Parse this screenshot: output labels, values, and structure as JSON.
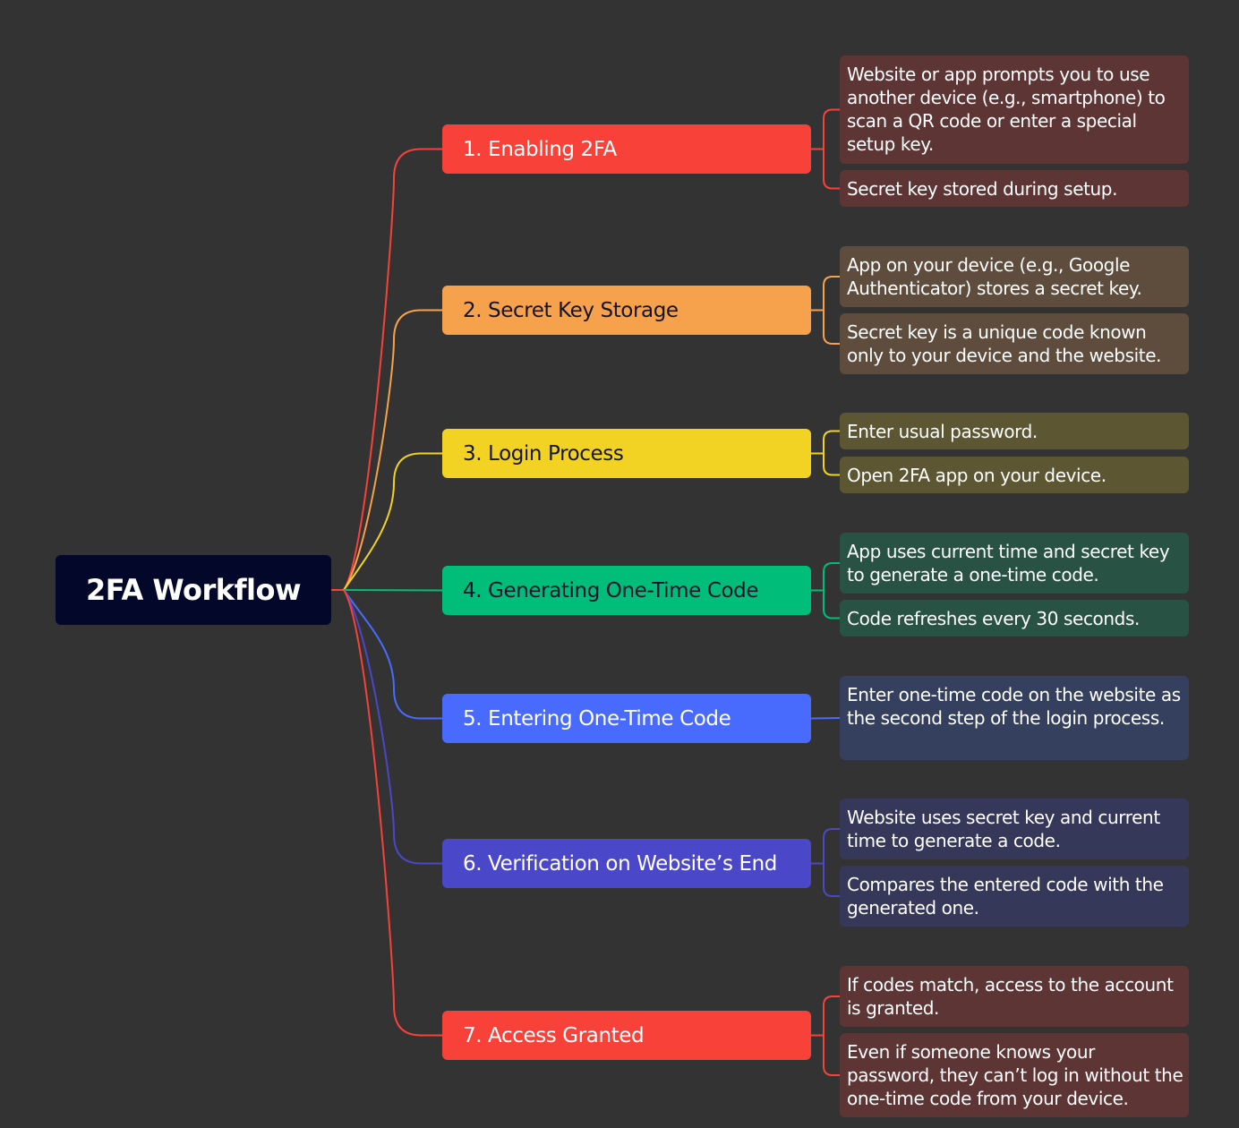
{
  "root": {
    "label": "2FA Workflow",
    "color": "#03082a",
    "text_color": "#ffffff"
  },
  "branches": [
    {
      "label": "1. Enabling 2FA",
      "color": "#f84139",
      "text_color": "#ffffff",
      "line_color": "#f84139",
      "leaf_color": "#5e3535",
      "leaves": [
        "Website or app prompts you to use another device (e.g., smartphone) to scan a QR code or enter a special setup key.",
        "Secret key stored during setup."
      ]
    },
    {
      "label": "2. Secret Key Storage",
      "color": "#f6a24c",
      "text_color": "#14142a",
      "line_color": "#f6a24c",
      "leaf_color": "#5e4c3d",
      "leaves": [
        "App on your device (e.g., Google Authenticator) stores a secret key.",
        "Secret key is a unique code known only to your device and the website."
      ]
    },
    {
      "label": "3. Login Process",
      "color": "#f2d323",
      "text_color": "#14142a",
      "line_color": "#f2d323",
      "leaf_color": "#5d5633",
      "leaves": [
        "Enter usual password.",
        "Open 2FA app on your device."
      ]
    },
    {
      "label": "4. Generating One-Time Code",
      "color": "#00bd79",
      "text_color": "#14142a",
      "line_color": "#00bd79",
      "leaf_color": "#275244",
      "leaves": [
        "App uses current time and secret key to generate a one-time code.",
        "Code refreshes every 30 seconds."
      ]
    },
    {
      "label": "5. Entering One-Time Code",
      "color": "#486bfe",
      "text_color": "#ffffff",
      "line_color": "#486bfe",
      "leaf_color": "#35405e",
      "leaves": [
        "Enter one-time code on the website as the second step of the login process."
      ]
    },
    {
      "label": "6. Verification on Website’s End",
      "color": "#4a47c9",
      "text_color": "#ffffff",
      "line_color": "#4a47c9",
      "leaf_color": "#36385a",
      "leaves": [
        "Website uses secret key and current time to generate a code.",
        "Compares the entered code with the generated one."
      ]
    },
    {
      "label": "7. Access Granted",
      "color": "#f84139",
      "text_color": "#ffffff",
      "line_color": "#f84139",
      "leaf_color": "#5e3535",
      "leaves": [
        "If codes match, access to the account is granted.",
        "Even if someone knows your password, they can’t log in without the one-time code from your device."
      ]
    }
  ]
}
